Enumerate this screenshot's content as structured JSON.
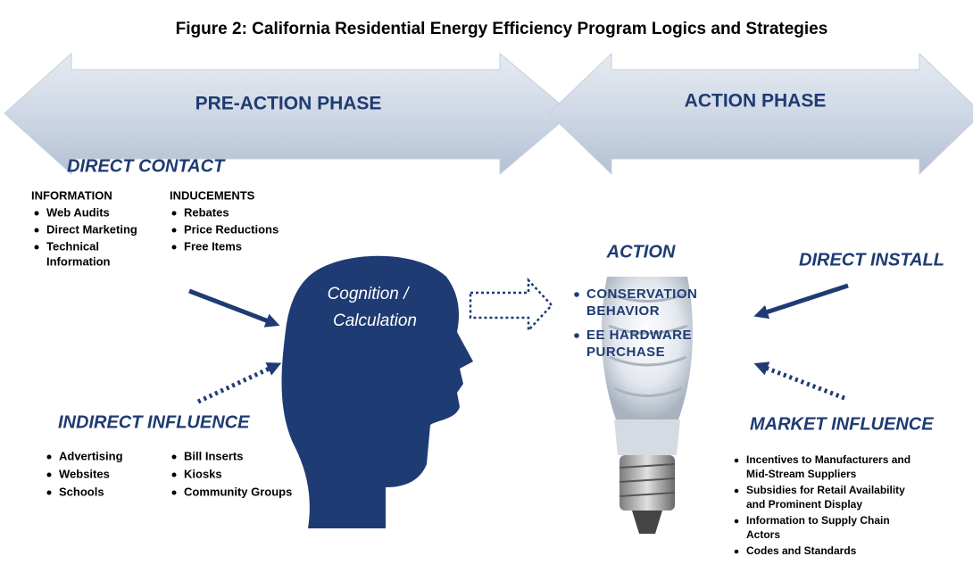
{
  "title": "Figure 2: California Residential Energy Efficiency Program Logics and Strategies",
  "phases": [
    "PRE-ACTION PHASE",
    "ACTION PHASE"
  ],
  "direct_contact": {
    "heading": "DIRECT CONTACT",
    "groups": [
      {
        "heading": "INFORMATION",
        "items": [
          [
            "Web Audits"
          ],
          [
            "Direct Marketing"
          ],
          [
            "Technical",
            "Information"
          ]
        ]
      },
      {
        "heading": "INDUCEMENTS",
        "items": [
          [
            "Rebates"
          ],
          [
            "Price Reductions"
          ],
          [
            "Free Items"
          ]
        ]
      }
    ]
  },
  "cognition": [
    "Cognition /",
    "Calculation"
  ],
  "action": {
    "heading": "ACTION",
    "items": [
      [
        "CONSERVATION",
        "BEHAVIOR"
      ],
      [
        "EE HARDWARE",
        "PURCHASE"
      ]
    ]
  },
  "direct_install": {
    "heading": "DIRECT INSTALL"
  },
  "indirect_influence": {
    "heading": "INDIRECT INFLUENCE",
    "groups": [
      {
        "items": [
          [
            "Advertising"
          ],
          [
            "Websites"
          ],
          [
            "Schools"
          ]
        ]
      },
      {
        "items": [
          [
            "Bill Inserts"
          ],
          [
            "Kiosks"
          ],
          [
            "Community Groups"
          ]
        ]
      }
    ]
  },
  "market_influence": {
    "heading": "MARKET INFLUENCE",
    "items": [
      [
        "Incentives to Manufacturers and",
        "Mid-Stream Suppliers"
      ],
      [
        "Subsidies for Retail Availability",
        "and Prominent Display"
      ],
      [
        "Information to Supply Chain",
        "Actors"
      ],
      [
        "Codes and Standards"
      ]
    ]
  }
}
